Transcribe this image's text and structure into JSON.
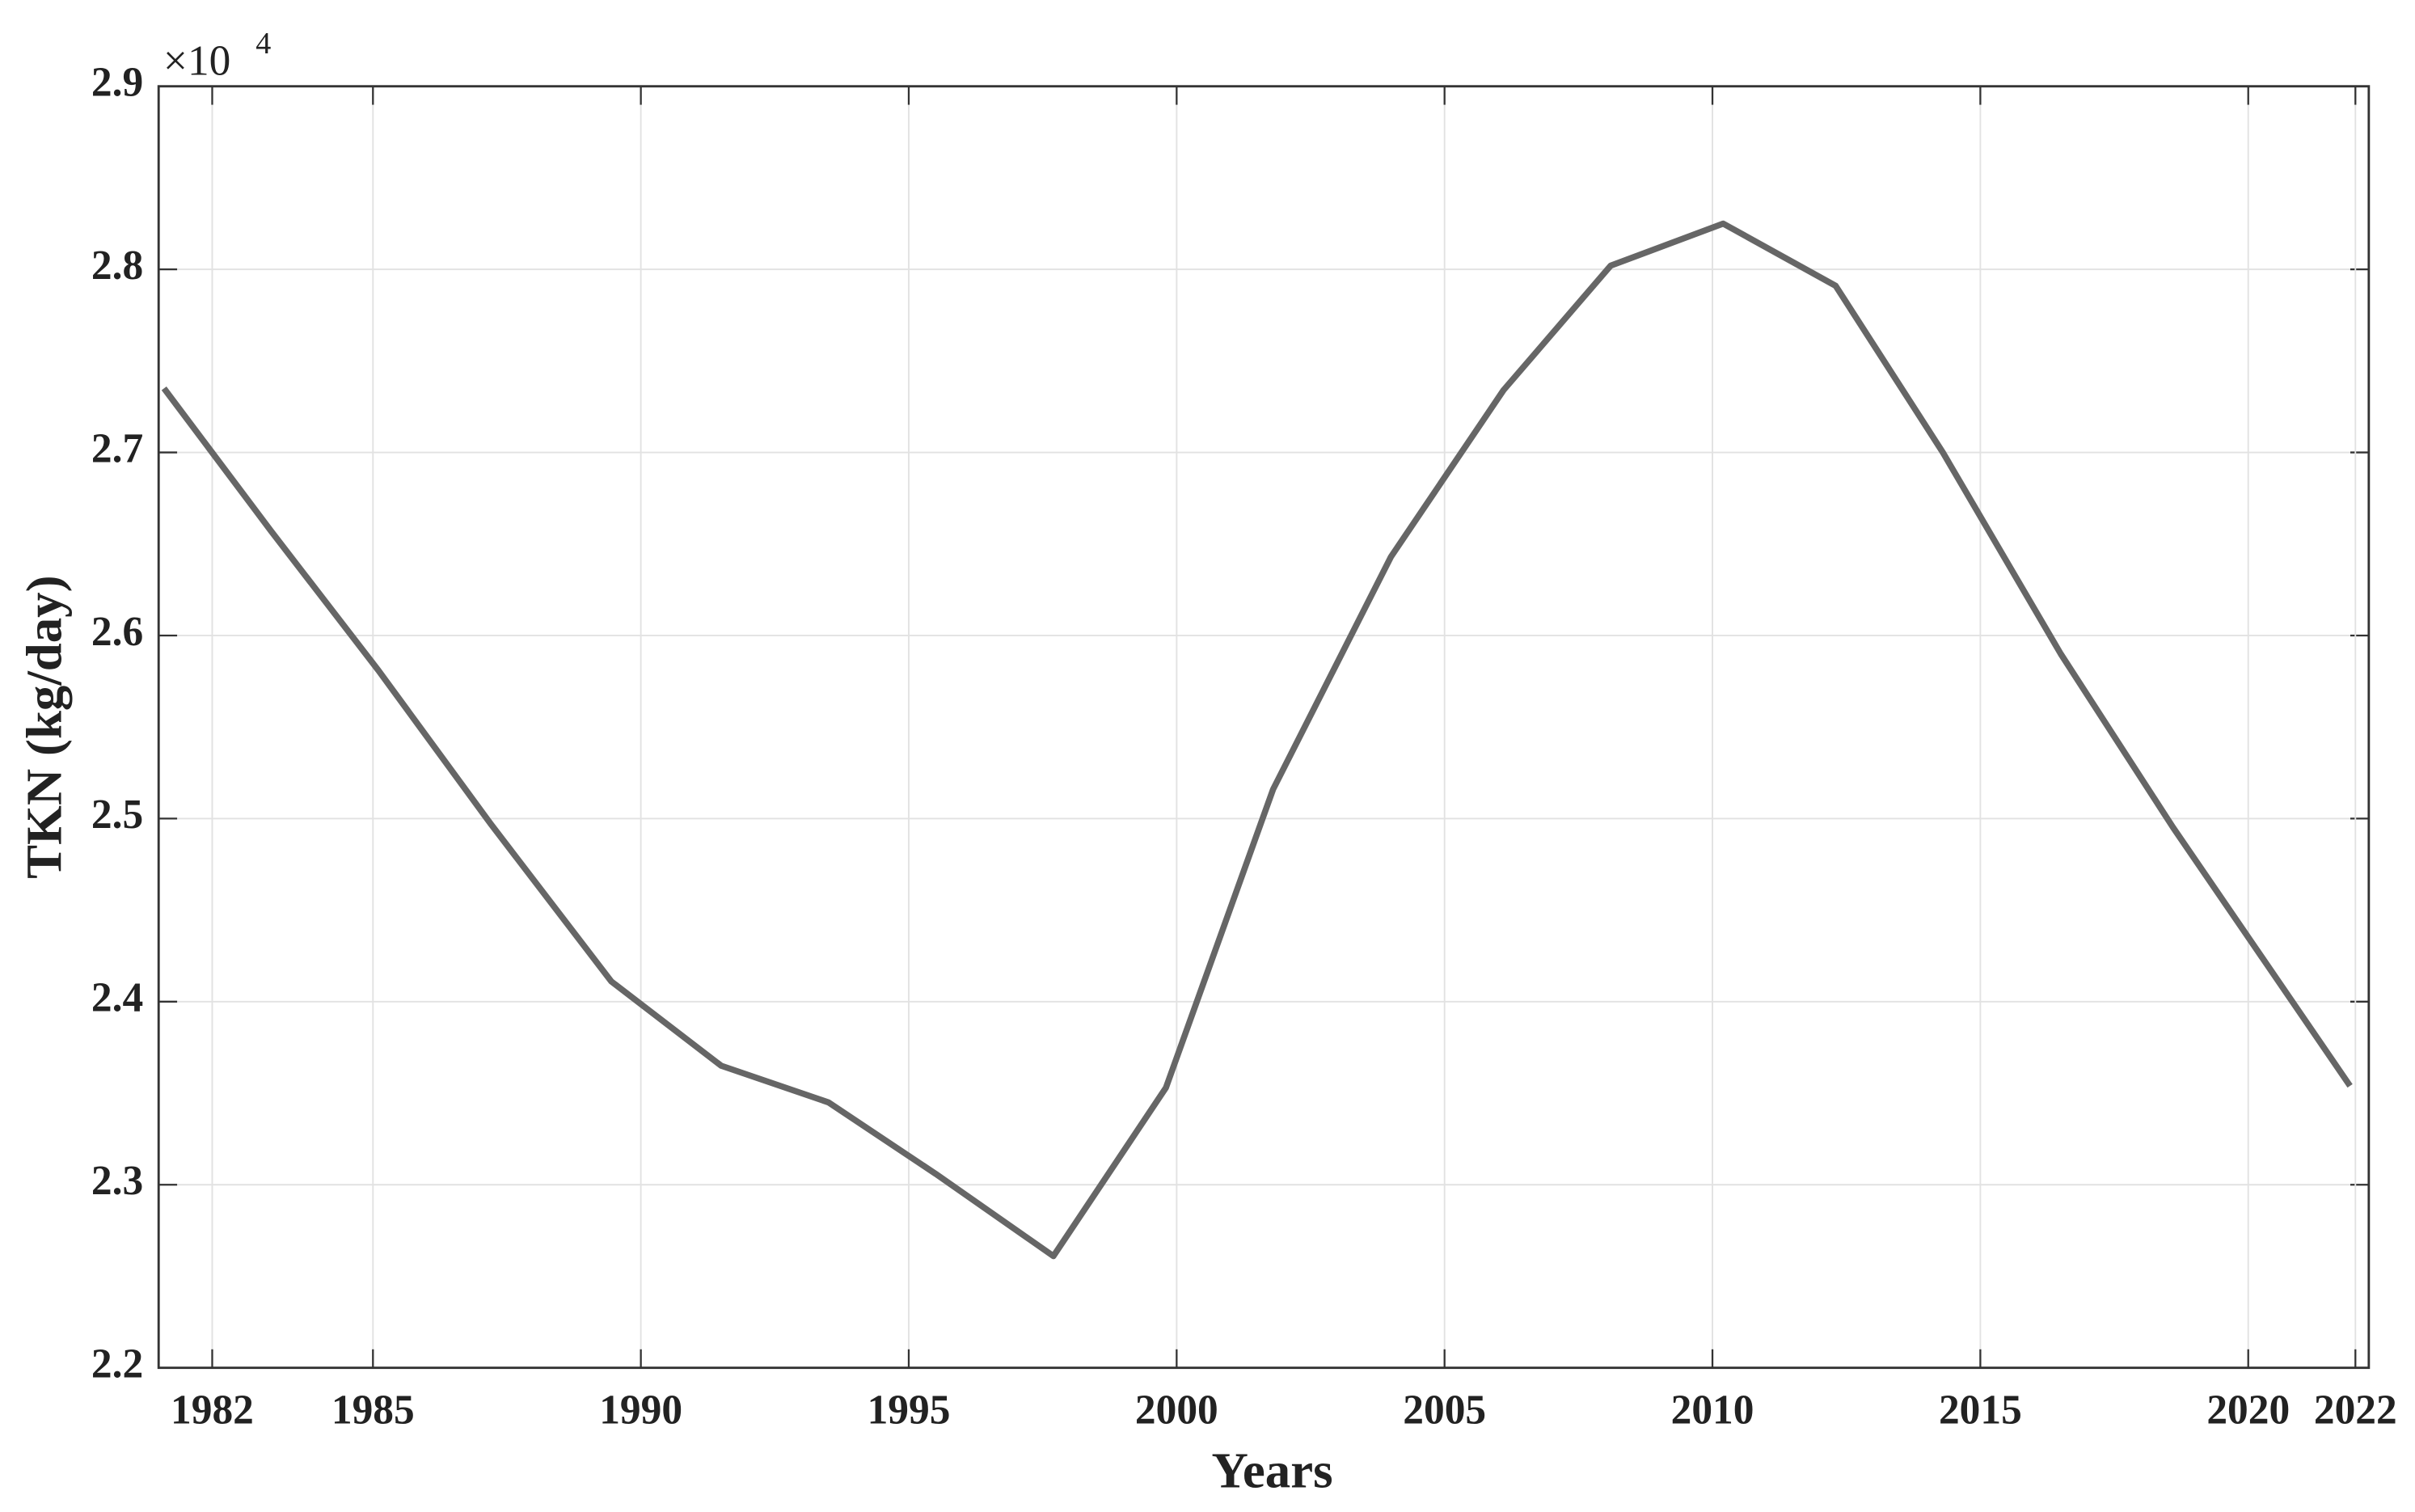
{
  "chart_data": {
    "type": "line",
    "x_label": "Years",
    "y_label": "TKN (kg/day)",
    "y_multiplier": "×10",
    "y_multiplier_exponent": "4",
    "x": [
      1981.1,
      1983.1,
      1985.1,
      1987.2,
      1989.45,
      1991.5,
      1993.5,
      1995.5,
      1997.7,
      1999.8,
      2001.8,
      2004.0,
      2006.1,
      2008.1,
      2010.2,
      2012.3,
      2014.3,
      2016.5,
      2018.6,
      2021.9
    ],
    "series": [
      {
        "color": "#666666",
        "values": [
          2.735,
          2.657,
          2.581,
          2.497,
          2.411,
          2.365,
          2.345,
          2.306,
          2.261,
          2.353,
          2.516,
          2.643,
          2.734,
          2.802,
          2.825,
          2.791,
          2.7,
          2.59,
          2.495,
          2.354
        ]
      }
    ],
    "xlim": [
      1981,
      2022.25
    ],
    "ylim": [
      2.2,
      2.9
    ],
    "xticks": [
      1982,
      1985,
      1990,
      1995,
      2000,
      2005,
      2010,
      2015,
      2020,
      2022
    ],
    "yticks": [
      2.2,
      2.3,
      2.4,
      2.5,
      2.6,
      2.7,
      2.8,
      2.9
    ],
    "grid": true
  }
}
